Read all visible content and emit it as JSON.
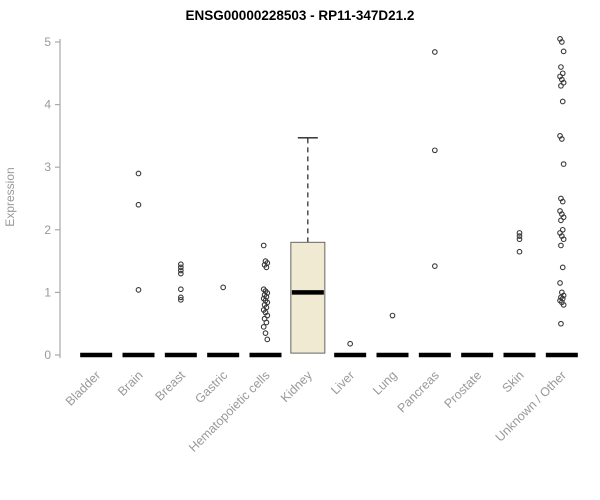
{
  "chart_data": {
    "type": "boxplot",
    "title": "ENSG00000228503 - RP11-347D21.2",
    "ylabel": "Expression",
    "ylim": [
      0,
      5
    ],
    "yticks": [
      0,
      1,
      2,
      3,
      4,
      5
    ],
    "grid": false,
    "legend": "none",
    "categories": [
      "Bladder",
      "Brain",
      "Breast",
      "Gastric",
      "Hematopoietic cells",
      "Kidney",
      "Liver",
      "Lung",
      "Pancreas",
      "Prostate",
      "Skin",
      "Unknown / Other"
    ],
    "groups": [
      {
        "category": "Bladder",
        "median": 0,
        "q1": 0,
        "q3": 0,
        "whisker_low": 0,
        "whisker_high": 0,
        "outliers": []
      },
      {
        "category": "Brain",
        "median": 0,
        "q1": 0,
        "q3": 0,
        "whisker_low": 0,
        "whisker_high": 0,
        "outliers": [
          2.9,
          2.4,
          1.04
        ]
      },
      {
        "category": "Breast",
        "median": 0,
        "q1": 0,
        "q3": 0,
        "whisker_low": 0,
        "whisker_high": 0,
        "outliers": [
          1.45,
          1.4,
          1.35,
          1.3,
          1.05,
          0.92,
          0.88
        ]
      },
      {
        "category": "Gastric",
        "median": 0,
        "q1": 0,
        "q3": 0,
        "whisker_low": 0,
        "whisker_high": 0,
        "outliers": [
          1.08
        ]
      },
      {
        "category": "Hematopoietic cells",
        "median": 0,
        "q1": 0,
        "q3": 0,
        "whisker_low": 0,
        "whisker_high": 0,
        "outliers": [
          1.75,
          1.5,
          1.47,
          1.44,
          1.4,
          1.05,
          1.02,
          0.99,
          0.96,
          0.93,
          0.9,
          0.87,
          0.84,
          0.8,
          0.76,
          0.72,
          0.68,
          0.63,
          0.58,
          0.52,
          0.45,
          0.35,
          0.25
        ]
      },
      {
        "category": "Kidney",
        "median": 1.0,
        "q1": 0.03,
        "q3": 1.8,
        "whisker_low": 0,
        "whisker_high": 3.47,
        "outliers": []
      },
      {
        "category": "Liver",
        "median": 0,
        "q1": 0,
        "q3": 0,
        "whisker_low": 0,
        "whisker_high": 0,
        "outliers": [
          0.18
        ]
      },
      {
        "category": "Lung",
        "median": 0,
        "q1": 0,
        "q3": 0,
        "whisker_low": 0,
        "whisker_high": 0,
        "outliers": [
          0.63
        ]
      },
      {
        "category": "Pancreas",
        "median": 0,
        "q1": 0,
        "q3": 0,
        "whisker_low": 0,
        "whisker_high": 0,
        "outliers": [
          4.84,
          3.27,
          1.42
        ]
      },
      {
        "category": "Prostate",
        "median": 0,
        "q1": 0,
        "q3": 0,
        "whisker_low": 0,
        "whisker_high": 0,
        "outliers": []
      },
      {
        "category": "Skin",
        "median": 0,
        "q1": 0,
        "q3": 0,
        "whisker_low": 0,
        "whisker_high": 0,
        "outliers": [
          1.95,
          1.9,
          1.85,
          1.65
        ]
      },
      {
        "category": "Unknown / Other",
        "median": 0,
        "q1": 0,
        "q3": 0,
        "whisker_low": 0,
        "whisker_high": 0,
        "outliers": [
          5.05,
          5.0,
          4.85,
          4.6,
          4.5,
          4.45,
          4.4,
          4.35,
          4.3,
          4.05,
          3.5,
          3.45,
          3.05,
          2.5,
          2.45,
          2.3,
          2.25,
          2.2,
          2.15,
          2.0,
          1.95,
          1.9,
          1.85,
          1.75,
          1.4,
          1.15,
          1.0,
          0.95,
          0.92,
          0.9,
          0.87,
          0.84,
          0.8,
          0.5
        ]
      }
    ],
    "colors": {
      "box_fill": "#f0ead2",
      "box_stroke": "#666666",
      "median_bar": "#000000",
      "point_stroke": "#3a3a3a",
      "axis": "#a8a8a8",
      "tick_text": "#999999",
      "title_text": "#000000"
    }
  }
}
